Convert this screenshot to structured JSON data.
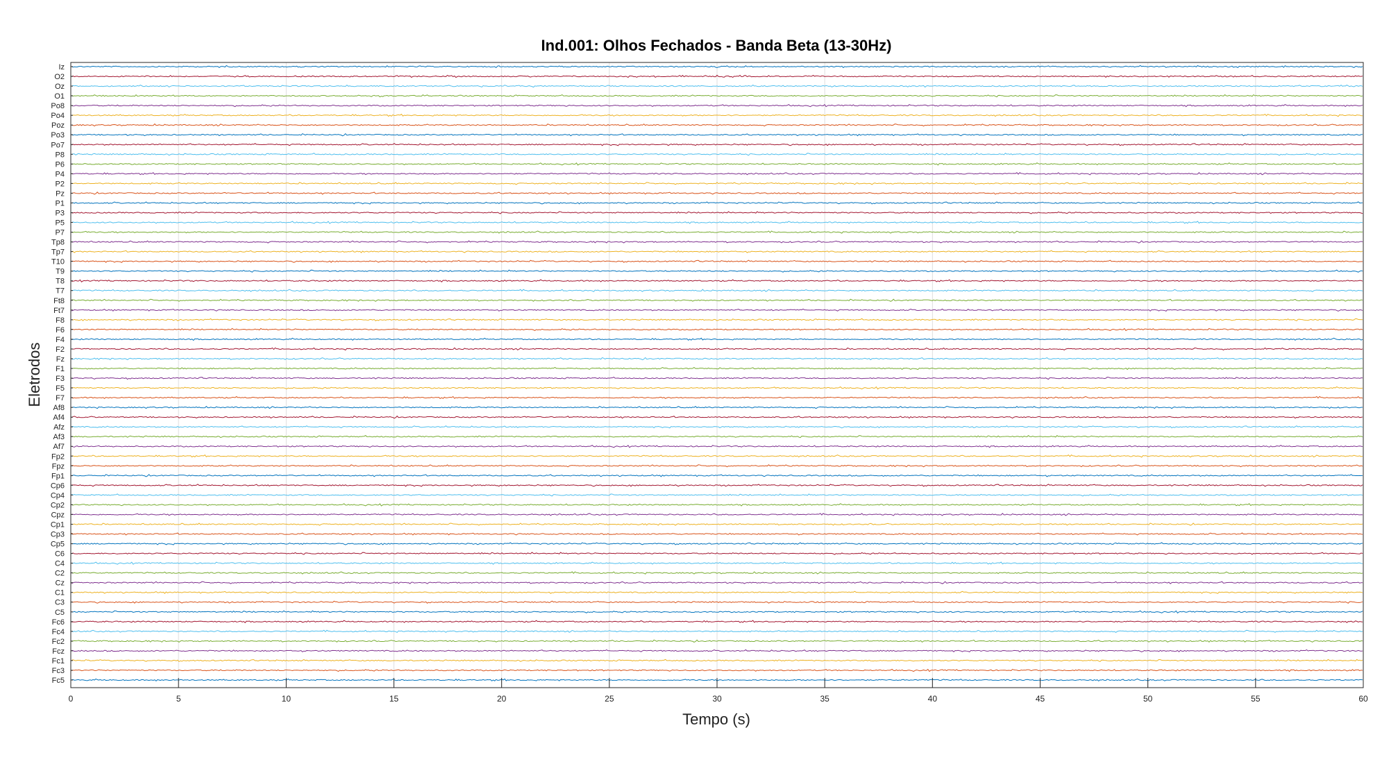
{
  "chart_data": {
    "type": "line",
    "title": "Ind.001: Olhos Fechados - Banda Beta (13-30Hz)",
    "xlabel": "Tempo (s)",
    "ylabel": "Eletrodos",
    "xlim": [
      0,
      60
    ],
    "x_ticks": [
      0,
      5,
      10,
      15,
      20,
      25,
      30,
      35,
      40,
      45,
      50,
      55,
      60
    ],
    "grid": "x",
    "legend": "none",
    "channels_top_to_bottom": [
      "Iz",
      "O2",
      "Oz",
      "O1",
      "Po8",
      "Po4",
      "Poz",
      "Po3",
      "Po7",
      "P8",
      "P6",
      "P4",
      "P2",
      "Pz",
      "P1",
      "P3",
      "P5",
      "P7",
      "Tp8",
      "Tp7",
      "T10",
      "T9",
      "T8",
      "T7",
      "Ft8",
      "Ft7",
      "F8",
      "F6",
      "F4",
      "F2",
      "Fz",
      "F1",
      "F3",
      "F5",
      "F7",
      "Af8",
      "Af4",
      "Afz",
      "Af3",
      "Af7",
      "Fp2",
      "Fpz",
      "Fp1",
      "Cp6",
      "Cp4",
      "Cp2",
      "Cpz",
      "Cp1",
      "Cp3",
      "Cp5",
      "C6",
      "C4",
      "C2",
      "Cz",
      "C1",
      "C3",
      "C5",
      "Fc6",
      "Fc4",
      "Fc2",
      "Fcz",
      "Fc1",
      "Fc3",
      "Fc5"
    ],
    "series_colors": [
      "#0072BD",
      "#A2142F",
      "#4DBEEE",
      "#77AC30",
      "#7E2F8E",
      "#EDB120",
      "#D95319"
    ]
  }
}
